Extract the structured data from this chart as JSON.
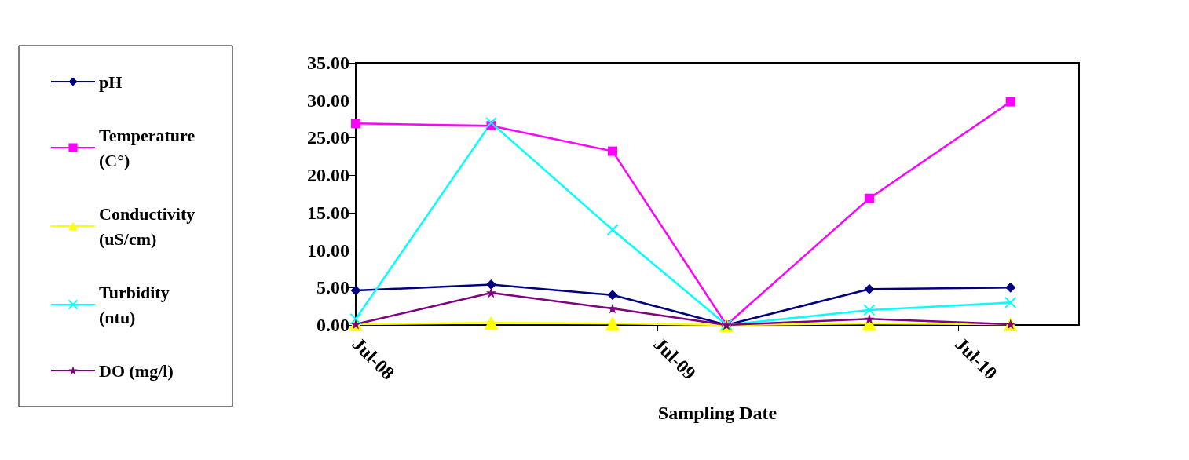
{
  "chart_data": {
    "type": "line",
    "xlabel": "Sampling Date",
    "x": [
      "2008-07-01",
      "2008-12-12",
      "2009-05-08",
      "2009-09-23",
      "2010-03-15",
      "2010-09-02"
    ],
    "xlim": [
      "2008-07-01",
      "2010-11-24"
    ],
    "xticks": [
      {
        "value": "2008-07-01",
        "label": "Jul-08"
      },
      {
        "value": "2009-07-01",
        "label": "Jul-09"
      },
      {
        "value": "2010-07-01",
        "label": "Jul-10"
      }
    ],
    "ylim": [
      0,
      35
    ],
    "yticks": [
      {
        "value": 0,
        "label": "0.00"
      },
      {
        "value": 5,
        "label": "5.00"
      },
      {
        "value": 10,
        "label": "10.00"
      },
      {
        "value": 15,
        "label": "15.00"
      },
      {
        "value": 20,
        "label": "20.00"
      },
      {
        "value": 25,
        "label": "25.00"
      },
      {
        "value": 30,
        "label": "30.00"
      },
      {
        "value": 35,
        "label": "35.00"
      }
    ],
    "grid": false,
    "legend": "left",
    "series": [
      {
        "name": "pH",
        "color": "#000080",
        "marker": "diamond",
        "values": [
          4.6,
          5.4,
          4.0,
          0,
          4.8,
          5.0
        ]
      },
      {
        "name": "Temperature (C°)",
        "color": "#ff00ff",
        "marker": "square",
        "values": [
          26.9,
          26.6,
          23.2,
          0,
          16.9,
          29.8
        ]
      },
      {
        "name": "Conductivity (uS/cm)",
        "color": "#ffff00",
        "marker": "triangle",
        "values": [
          0.1,
          0.3,
          0.2,
          0,
          0.2,
          0.1
        ]
      },
      {
        "name": "Turbidity (ntu)",
        "color": "#00ffff",
        "marker": "cross",
        "values": [
          0.8,
          27.0,
          12.7,
          0,
          2.0,
          3.0
        ]
      },
      {
        "name": "DO (mg/l)",
        "color": "#800080",
        "marker": "star",
        "values": [
          0.1,
          4.3,
          2.2,
          0,
          0.8,
          0.1
        ]
      }
    ]
  }
}
